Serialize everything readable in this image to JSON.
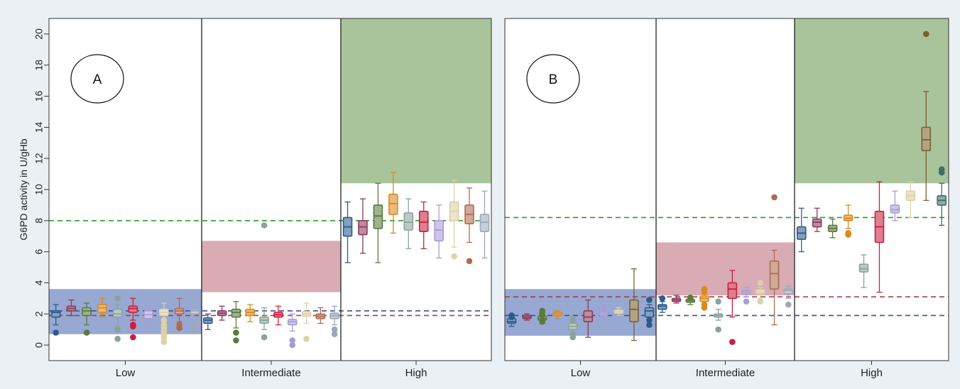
{
  "chart_data": {
    "type": "box",
    "ylabel": "G6PD activity in U/gHb",
    "ylim": [
      -1,
      21
    ],
    "yticks": [
      0,
      2,
      4,
      6,
      8,
      10,
      12,
      14,
      16,
      18,
      20
    ],
    "categories": [
      "Low",
      "Intermediate",
      "High"
    ],
    "grid": false,
    "colors": [
      "#2c5b8c",
      "#8c3a5a",
      "#5a7a3e",
      "#d98a1e",
      "#8aa39a",
      "#c8203e",
      "#a89cd8",
      "#ddd1a6",
      "#b06a4e",
      "#9ca8b8",
      "#2c5b8c",
      "#3e6e66",
      "#7a6030"
    ],
    "panels": [
      {
        "label": "A",
        "regions": [
          {
            "category": "Low",
            "ymin": 0.7,
            "ymax": 3.6,
            "color": "#6f86c0"
          },
          {
            "category": "Intermediate",
            "ymin": 3.4,
            "ymax": 6.7,
            "color": "#c98a98"
          },
          {
            "category": "High",
            "ymin": 10.4,
            "ymax": 21,
            "color": "#88ad74"
          }
        ],
        "reference_lines": [
          {
            "y": 8.0,
            "color": "#2f9a2f"
          },
          {
            "y": 2.2,
            "color": "#3a4f9a"
          },
          {
            "y": 1.9,
            "color": "#a04050"
          }
        ],
        "boxes": [
          {
            "category": "Low",
            "color_index": 0,
            "q1": 1.8,
            "median": 2.1,
            "q3": 2.2,
            "whisker_low": 1.3,
            "whisker_high": 2.6,
            "outliers": [
              0.8
            ]
          },
          {
            "category": "Low",
            "color_index": 1,
            "q1": 2.2,
            "median": 2.35,
            "q3": 2.5,
            "whisker_low": 1.9,
            "whisker_high": 2.9,
            "outliers": []
          },
          {
            "category": "Low",
            "color_index": 2,
            "q1": 1.9,
            "median": 2.2,
            "q3": 2.4,
            "whisker_low": 1.3,
            "whisker_high": 2.7,
            "outliers": [
              0.8
            ]
          },
          {
            "category": "Low",
            "color_index": 3,
            "q1": 2.1,
            "median": 2.4,
            "q3": 2.6,
            "whisker_low": 1.8,
            "whisker_high": 3.0,
            "outliers": []
          },
          {
            "category": "Low",
            "color_index": 4,
            "q1": 1.8,
            "median": 2.0,
            "q3": 2.3,
            "whisker_low": 1.2,
            "whisker_high": 2.6,
            "outliers": [
              3.0,
              1.0,
              0.4
            ]
          },
          {
            "category": "Low",
            "color_index": 5,
            "q1": 2.1,
            "median": 2.35,
            "q3": 2.5,
            "whisker_low": 1.6,
            "whisker_high": 3.0,
            "outliers": [
              1.3,
              1.2,
              0.5
            ]
          },
          {
            "category": "Low",
            "color_index": 6,
            "q1": 1.7,
            "median": 1.95,
            "q3": 2.2,
            "whisker_low": 1.2,
            "whisker_high": 2.5,
            "outliers": []
          },
          {
            "category": "Low",
            "color_index": 7,
            "q1": 1.9,
            "median": 2.1,
            "q3": 2.3,
            "whisker_low": 1.5,
            "whisker_high": 2.7,
            "outliers": [
              1.6,
              1.3,
              1.1,
              0.9,
              0.7,
              0.5,
              0.2
            ]
          },
          {
            "category": "Low",
            "color_index": 8,
            "q1": 2.0,
            "median": 2.2,
            "q3": 2.35,
            "whisker_low": 1.5,
            "whisker_high": 3.0,
            "outliers": [
              1.3,
              1.1
            ]
          },
          {
            "category": "Low",
            "color_index": 9,
            "q1": 2.0,
            "median": 2.2,
            "q3": 2.3,
            "whisker_low": 1.4,
            "whisker_high": 2.7,
            "outliers": [
              1.3,
              0.9
            ]
          },
          {
            "category": "Intermediate",
            "color_index": 0,
            "q1": 1.4,
            "median": 1.6,
            "q3": 1.75,
            "whisker_low": 1.0,
            "whisker_high": 2.0,
            "outliers": []
          },
          {
            "category": "Intermediate",
            "color_index": 1,
            "q1": 1.9,
            "median": 2.05,
            "q3": 2.2,
            "whisker_low": 1.6,
            "whisker_high": 2.5,
            "outliers": []
          },
          {
            "category": "Intermediate",
            "color_index": 2,
            "q1": 1.8,
            "median": 2.1,
            "q3": 2.3,
            "whisker_low": 1.1,
            "whisker_high": 2.8,
            "outliers": [
              0.8,
              0.3
            ]
          },
          {
            "category": "Intermediate",
            "color_index": 3,
            "q1": 1.9,
            "median": 2.1,
            "q3": 2.3,
            "whisker_low": 1.5,
            "whisker_high": 2.6,
            "outliers": []
          },
          {
            "category": "Intermediate",
            "color_index": 4,
            "q1": 1.4,
            "median": 1.6,
            "q3": 1.8,
            "whisker_low": 1.0,
            "whisker_high": 2.4,
            "outliers": [
              7.7,
              0.5
            ]
          },
          {
            "category": "Intermediate",
            "color_index": 5,
            "q1": 1.8,
            "median": 1.95,
            "q3": 2.1,
            "whisker_low": 1.3,
            "whisker_high": 2.5,
            "outliers": []
          },
          {
            "category": "Intermediate",
            "color_index": 6,
            "q1": 1.3,
            "median": 1.5,
            "q3": 1.65,
            "whisker_low": 0.9,
            "whisker_high": 2.0,
            "outliers": [
              0.3,
              0.0
            ]
          },
          {
            "category": "Intermediate",
            "color_index": 7,
            "q1": 1.85,
            "median": 2.0,
            "q3": 2.15,
            "whisker_low": 1.4,
            "whisker_high": 2.7,
            "outliers": [
              0.4
            ]
          },
          {
            "category": "Intermediate",
            "color_index": 8,
            "q1": 1.7,
            "median": 1.85,
            "q3": 2.0,
            "whisker_low": 1.4,
            "whisker_high": 2.4,
            "outliers": []
          },
          {
            "category": "Intermediate",
            "color_index": 9,
            "q1": 1.7,
            "median": 1.9,
            "q3": 2.05,
            "whisker_low": 1.3,
            "whisker_high": 2.5,
            "outliers": [
              1.0,
              0.7
            ]
          },
          {
            "category": "High",
            "color_index": 0,
            "q1": 7.0,
            "median": 7.6,
            "q3": 8.2,
            "whisker_low": 5.3,
            "whisker_high": 9.2,
            "outliers": []
          },
          {
            "category": "High",
            "color_index": 1,
            "q1": 7.1,
            "median": 7.6,
            "q3": 8.0,
            "whisker_low": 5.9,
            "whisker_high": 9.4,
            "outliers": []
          },
          {
            "category": "High",
            "color_index": 2,
            "q1": 7.5,
            "median": 8.3,
            "q3": 9.0,
            "whisker_low": 5.3,
            "whisker_high": 10.4,
            "outliers": []
          },
          {
            "category": "High",
            "color_index": 3,
            "q1": 8.4,
            "median": 9.1,
            "q3": 9.7,
            "whisker_low": 7.2,
            "whisker_high": 11.1,
            "outliers": []
          },
          {
            "category": "High",
            "color_index": 4,
            "q1": 7.4,
            "median": 7.9,
            "q3": 8.5,
            "whisker_low": 6.2,
            "whisker_high": 9.4,
            "outliers": []
          },
          {
            "category": "High",
            "color_index": 5,
            "q1": 7.3,
            "median": 7.9,
            "q3": 8.6,
            "whisker_low": 6.2,
            "whisker_high": 9.2,
            "outliers": []
          },
          {
            "category": "High",
            "color_index": 6,
            "q1": 6.7,
            "median": 7.4,
            "q3": 8.0,
            "whisker_low": 5.6,
            "whisker_high": 9.0,
            "outliers": []
          },
          {
            "category": "High",
            "color_index": 7,
            "q1": 8.0,
            "median": 8.6,
            "q3": 9.2,
            "whisker_low": 6.3,
            "whisker_high": 10.6,
            "outliers": [
              5.7
            ]
          },
          {
            "category": "High",
            "color_index": 8,
            "q1": 7.8,
            "median": 8.4,
            "q3": 9.0,
            "whisker_low": 6.6,
            "whisker_high": 10.1,
            "outliers": [
              5.4
            ]
          },
          {
            "category": "High",
            "color_index": 9,
            "q1": 7.3,
            "median": 7.9,
            "q3": 8.4,
            "whisker_low": 5.6,
            "whisker_high": 9.9,
            "outliers": []
          }
        ]
      },
      {
        "label": "B",
        "regions": [
          {
            "category": "Low",
            "ymin": 0.6,
            "ymax": 3.6,
            "color": "#6f86c0"
          },
          {
            "category": "Intermediate",
            "ymin": 3.2,
            "ymax": 6.6,
            "color": "#c98a98"
          },
          {
            "category": "High",
            "ymin": 10.4,
            "ymax": 21,
            "color": "#88ad74"
          }
        ],
        "reference_lines": [
          {
            "y": 8.2,
            "color": "#2f9a2f"
          },
          {
            "y": 3.1,
            "color": "#a04050"
          },
          {
            "y": 1.9,
            "color": "#3a4f9a"
          }
        ],
        "boxes": [
          {
            "category": "Low",
            "color_index": 0,
            "q1": 1.4,
            "median": 1.5,
            "q3": 1.7,
            "whisker_low": 1.2,
            "whisker_high": 1.9,
            "outliers": [
              1.9,
              1.8
            ]
          },
          {
            "category": "Low",
            "color_index": 1,
            "q1": 1.7,
            "median": 1.8,
            "q3": 1.9,
            "whisker_low": 1.6,
            "whisker_high": 2.0,
            "outliers": []
          },
          {
            "category": "Low",
            "color_index": 2,
            "q1": 1.6,
            "median": 1.7,
            "q3": 1.85,
            "whisker_low": 1.4,
            "whisker_high": 2.1,
            "outliers": [
              2.2,
              2.0,
              1.9,
              1.5
            ]
          },
          {
            "category": "Low",
            "color_index": 3,
            "q1": 1.9,
            "median": 2.0,
            "q3": 2.1,
            "whisker_low": 1.7,
            "whisker_high": 2.2,
            "outliers": []
          },
          {
            "category": "Low",
            "color_index": 4,
            "q1": 1.0,
            "median": 1.2,
            "q3": 1.4,
            "whisker_low": 0.5,
            "whisker_high": 1.8,
            "outliers": [
              1.6,
              0.7,
              0.5
            ]
          },
          {
            "category": "Low",
            "color_index": 1,
            "q1": 1.5,
            "median": 1.8,
            "q3": 2.2,
            "whisker_low": 0.5,
            "whisker_high": 2.9,
            "outliers": []
          },
          {
            "category": "Low",
            "color_index": 6,
            "q1": 1.9,
            "median": 2.0,
            "q3": 2.1,
            "whisker_low": 1.7,
            "whisker_high": 2.3,
            "outliers": [
              2.4
            ]
          },
          {
            "category": "Low",
            "color_index": 7,
            "q1": 2.05,
            "median": 2.15,
            "q3": 2.25,
            "whisker_low": 1.9,
            "whisker_high": 2.4,
            "outliers": []
          },
          {
            "category": "Low",
            "color_index": 12,
            "q1": 1.5,
            "median": 2.3,
            "q3": 2.9,
            "whisker_low": 0.3,
            "whisker_high": 4.9,
            "outliers": []
          },
          {
            "category": "Low",
            "color_index": 10,
            "q1": 1.8,
            "median": 2.2,
            "q3": 2.4,
            "whisker_low": 1.2,
            "whisker_high": 2.6,
            "outliers": [
              2.9,
              1.6,
              1.3
            ]
          },
          {
            "category": "Intermediate",
            "color_index": 0,
            "q1": 2.3,
            "median": 2.5,
            "q3": 2.6,
            "whisker_low": 2.1,
            "whisker_high": 2.8,
            "outliers": [
              3.0
            ]
          },
          {
            "category": "Intermediate",
            "color_index": 1,
            "q1": 2.8,
            "median": 2.9,
            "q3": 3.0,
            "whisker_low": 2.7,
            "whisker_high": 3.2,
            "outliers": []
          },
          {
            "category": "Intermediate",
            "color_index": 2,
            "q1": 2.75,
            "median": 2.85,
            "q3": 2.95,
            "whisker_low": 2.6,
            "whisker_high": 3.0,
            "outliers": [
              3.05
            ]
          },
          {
            "category": "Intermediate",
            "color_index": 3,
            "q1": 2.8,
            "median": 3.0,
            "q3": 3.15,
            "whisker_low": 2.5,
            "whisker_high": 3.3,
            "outliers": [
              3.6,
              3.4,
              2.6,
              2.4
            ]
          },
          {
            "category": "Intermediate",
            "color_index": 4,
            "q1": 1.8,
            "median": 1.9,
            "q3": 2.0,
            "whisker_low": 1.6,
            "whisker_high": 2.3,
            "outliers": [
              2.8,
              1.0
            ]
          },
          {
            "category": "Intermediate",
            "color_index": 5,
            "q1": 3.0,
            "median": 3.6,
            "q3": 4.0,
            "whisker_low": 1.8,
            "whisker_high": 4.8,
            "outliers": [
              0.2
            ]
          },
          {
            "category": "Intermediate",
            "color_index": 6,
            "q1": 3.3,
            "median": 3.4,
            "q3": 3.5,
            "whisker_low": 3.1,
            "whisker_high": 3.7,
            "outliers": [
              2.8
            ]
          },
          {
            "category": "Intermediate",
            "color_index": 7,
            "q1": 3.3,
            "median": 3.4,
            "q3": 3.55,
            "whisker_low": 3.0,
            "whisker_high": 3.7,
            "outliers": [
              4.0,
              2.8
            ]
          },
          {
            "category": "Intermediate",
            "color_index": 8,
            "q1": 3.6,
            "median": 4.6,
            "q3": 5.4,
            "whisker_low": 1.3,
            "whisker_high": 6.1,
            "outliers": [
              9.5
            ]
          },
          {
            "category": "Intermediate",
            "color_index": 9,
            "q1": 3.3,
            "median": 3.5,
            "q3": 3.6,
            "whisker_low": 3.0,
            "whisker_high": 3.8,
            "outliers": [
              2.6
            ]
          },
          {
            "category": "High",
            "color_index": 0,
            "q1": 6.8,
            "median": 7.2,
            "q3": 7.6,
            "whisker_low": 6.0,
            "whisker_high": 8.8,
            "outliers": []
          },
          {
            "category": "High",
            "color_index": 1,
            "q1": 7.6,
            "median": 7.9,
            "q3": 8.1,
            "whisker_low": 7.3,
            "whisker_high": 8.8,
            "outliers": []
          },
          {
            "category": "High",
            "color_index": 2,
            "q1": 7.3,
            "median": 7.5,
            "q3": 7.7,
            "whisker_low": 6.9,
            "whisker_high": 8.1,
            "outliers": []
          },
          {
            "category": "High",
            "color_index": 3,
            "q1": 8.0,
            "median": 8.15,
            "q3": 8.35,
            "whisker_low": 7.5,
            "whisker_high": 9.0,
            "outliers": [
              7.2,
              7.1
            ]
          },
          {
            "category": "High",
            "color_index": 4,
            "q1": 4.7,
            "median": 4.9,
            "q3": 5.2,
            "whisker_low": 3.7,
            "whisker_high": 5.8,
            "outliers": []
          },
          {
            "category": "High",
            "color_index": 5,
            "q1": 6.6,
            "median": 7.6,
            "q3": 8.6,
            "whisker_low": 3.4,
            "whisker_high": 10.5,
            "outliers": []
          },
          {
            "category": "High",
            "color_index": 6,
            "q1": 8.5,
            "median": 8.7,
            "q3": 9.0,
            "whisker_low": 8.0,
            "whisker_high": 9.9,
            "outliers": []
          },
          {
            "category": "High",
            "color_index": 7,
            "q1": 9.3,
            "median": 9.6,
            "q3": 9.9,
            "whisker_low": 8.2,
            "whisker_high": 10.5,
            "outliers": []
          },
          {
            "category": "High",
            "color_index": 12,
            "q1": 12.5,
            "median": 13.2,
            "q3": 14.0,
            "whisker_low": 9.3,
            "whisker_high": 16.3,
            "outliers": [
              20.0
            ]
          },
          {
            "category": "High",
            "color_index": 11,
            "q1": 9.0,
            "median": 9.3,
            "q3": 9.6,
            "whisker_low": 7.7,
            "whisker_high": 10.4,
            "outliers": [
              11.3,
              11.1
            ]
          }
        ]
      }
    ]
  }
}
